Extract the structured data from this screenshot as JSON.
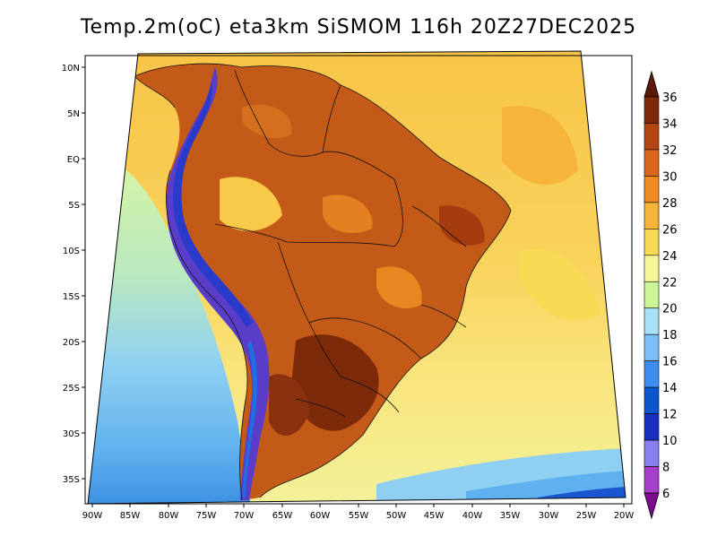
{
  "title": "Temp.2m(oC) eta3km SiSMOM 116h 20Z27DEC2025",
  "lat_labels": [
    "10N",
    "5N",
    "EQ",
    "5S",
    "10S",
    "15S",
    "20S",
    "25S",
    "30S",
    "35S"
  ],
  "lon_labels": [
    "90W",
    "85W",
    "80W",
    "75W",
    "70W",
    "65W",
    "60W",
    "55W",
    "50W",
    "45W",
    "40W",
    "35W",
    "30W",
    "25W",
    "20W"
  ],
  "colorbar": {
    "levels": [
      "6",
      "8",
      "10",
      "12",
      "14",
      "16",
      "18",
      "20",
      "22",
      "24",
      "26",
      "28",
      "30",
      "32",
      "34",
      "36"
    ],
    "colors": [
      "#7b0c8c",
      "#a63fcc",
      "#8a7ff0",
      "#1a2fc0",
      "#0b55cf",
      "#3d8ef0",
      "#7dbff5",
      "#a9dff7",
      "#ccf59a",
      "#f8f49a",
      "#f9da55",
      "#f7b43a",
      "#ef8b22",
      "#d9661c",
      "#b34512",
      "#7d2a0b",
      "#5a1a05"
    ]
  },
  "colors": {
    "ocean_north": "#f7bf3c",
    "ocean_south_cool": "#8fd0f2",
    "land_hot": "#c45a18",
    "andes": "#5a3ec9"
  }
}
